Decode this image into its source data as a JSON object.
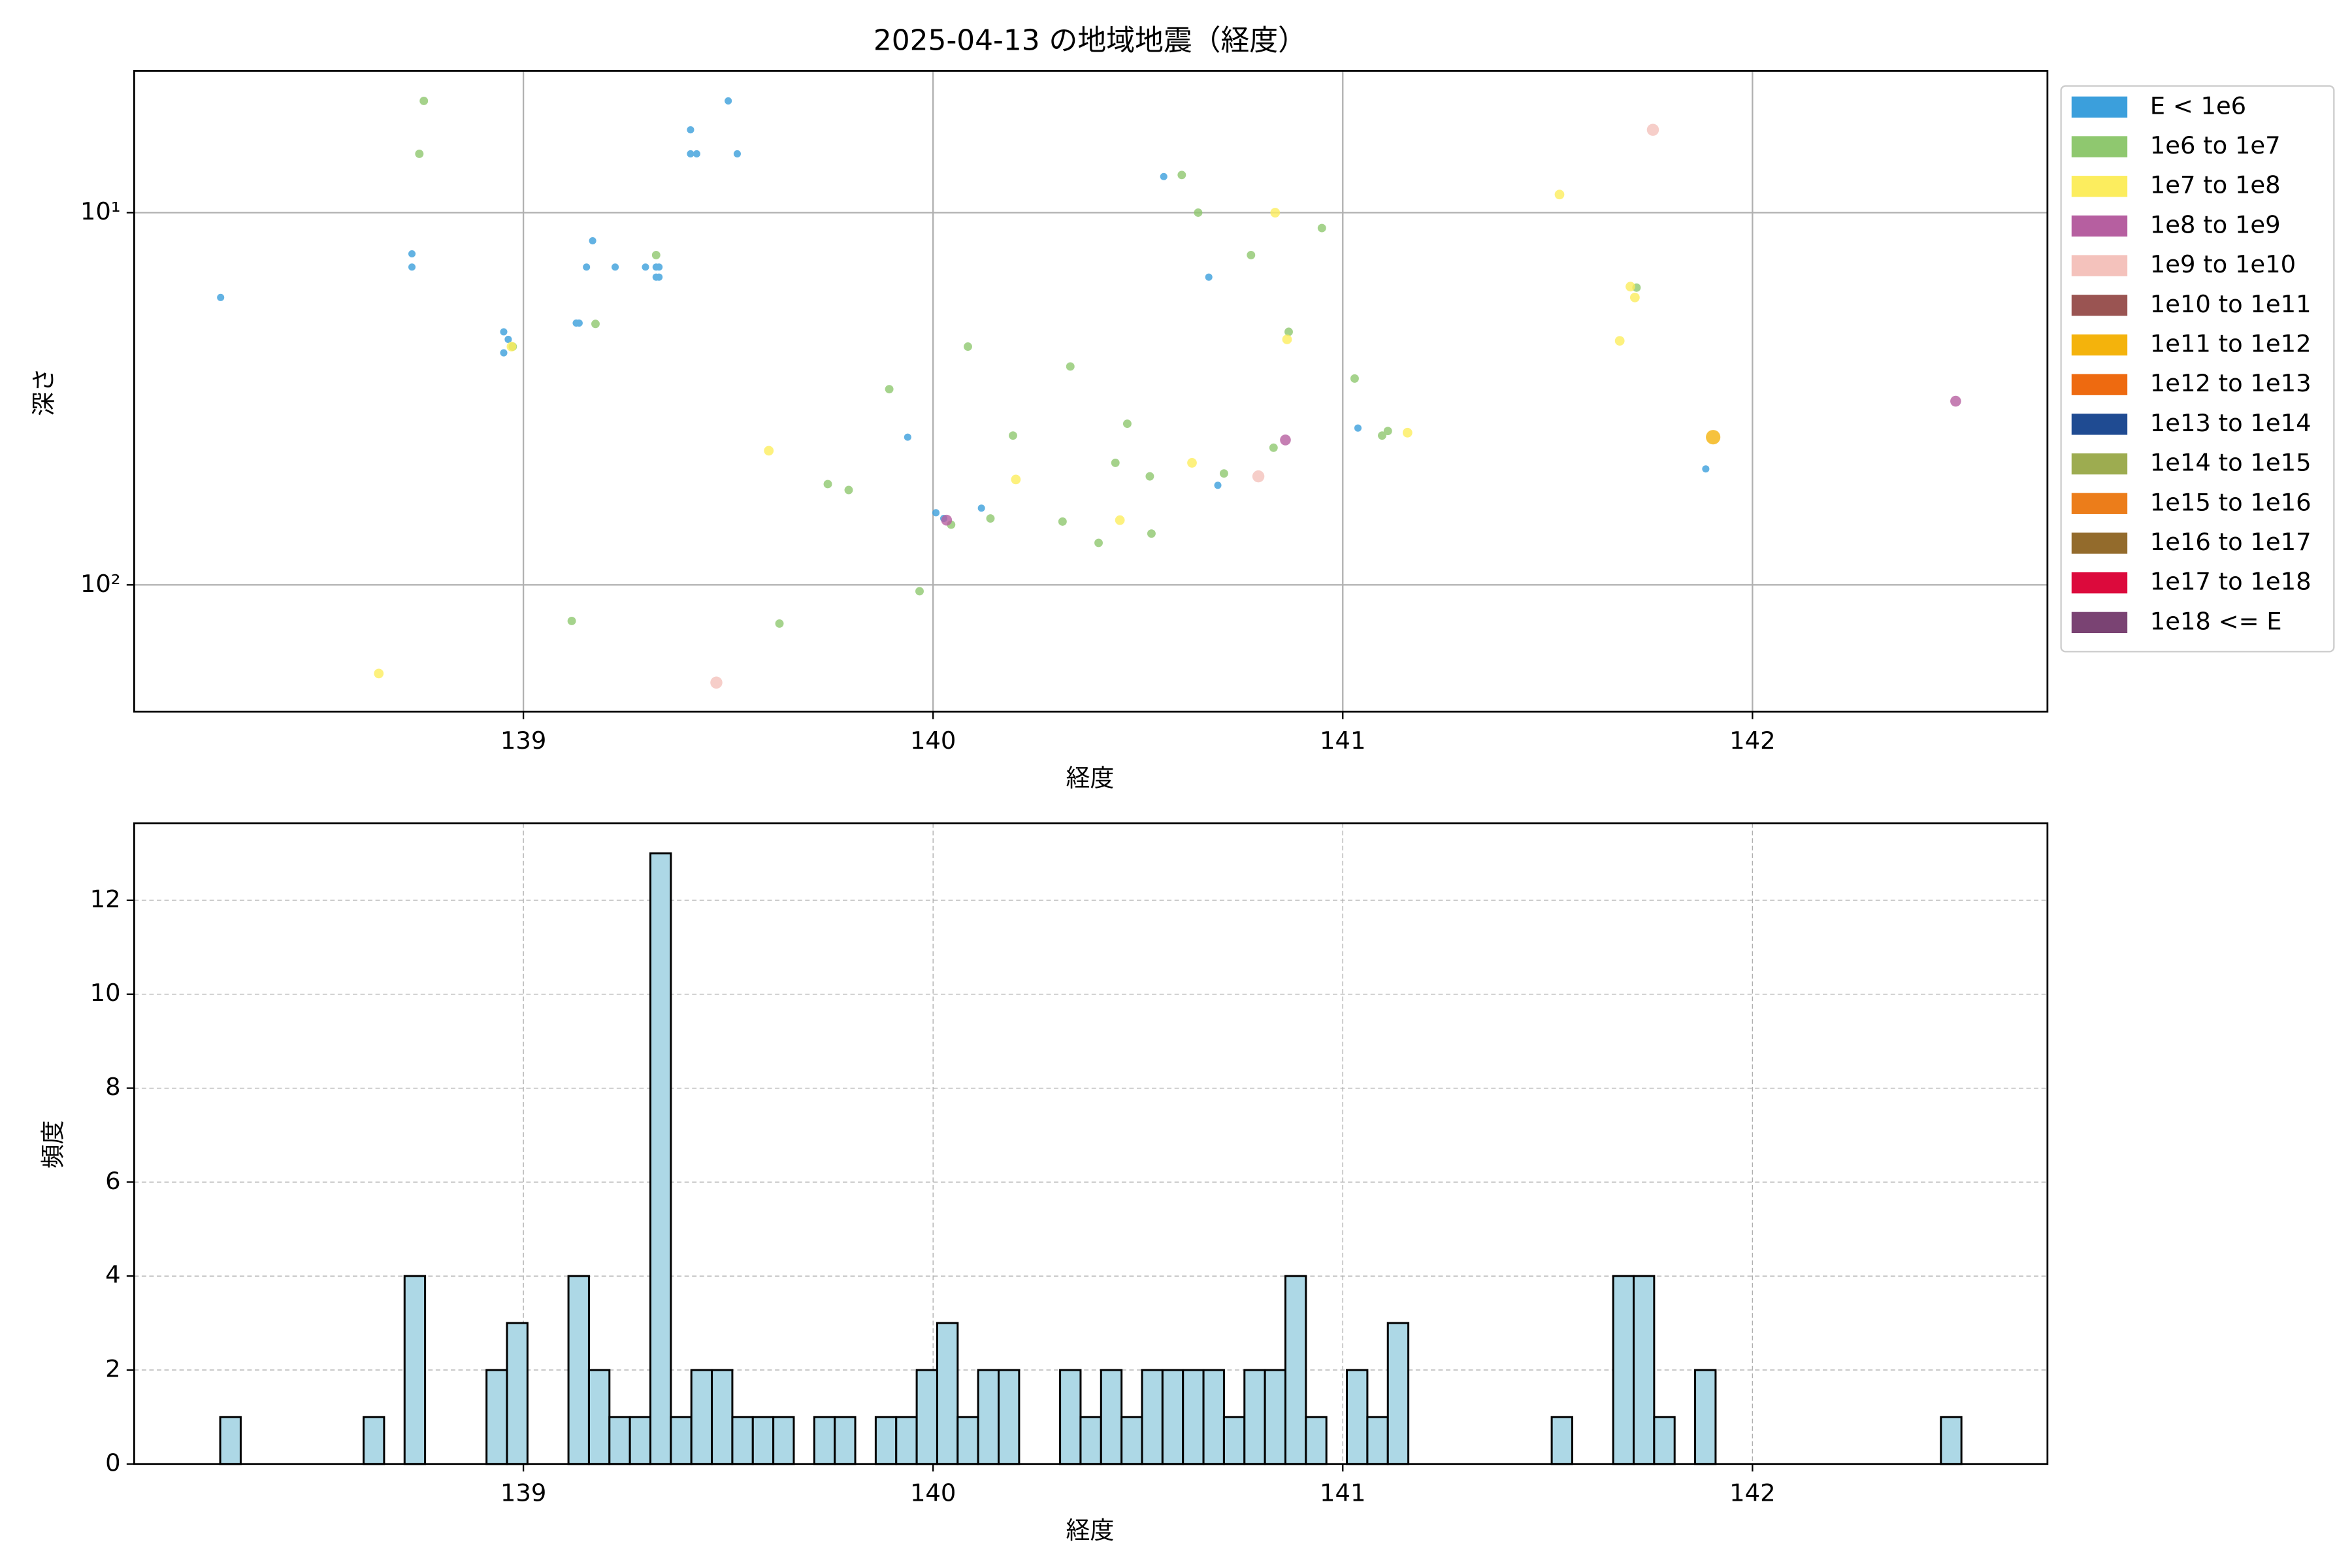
{
  "chart_data": [
    {
      "type": "scatter",
      "title": "2025-04-13 の地域地震（経度）",
      "xlabel": "経度",
      "ylabel": "深さ",
      "xlim": [
        138.05,
        142.72
      ],
      "ylim": [
        4.16,
        219
      ],
      "yscale": "log",
      "y_inverted": true,
      "xticks": [
        139,
        140,
        141,
        142
      ],
      "yticks": [
        {
          "value": 10,
          "label": "10¹"
        },
        {
          "value": 100,
          "label": "10²"
        }
      ],
      "grid": true,
      "legend": "outside-right",
      "series": [
        {
          "name": "E < 1e6",
          "color": "#3b9fdc",
          "x": [
            138.261,
            138.728,
            138.728,
            138.952,
            138.963,
            138.952,
            139.129,
            139.136,
            139.169,
            139.154,
            139.224,
            139.298,
            139.324,
            139.331,
            139.324,
            139.331,
            139.408,
            139.408,
            139.423,
            139.5,
            139.522,
            139.938,
            140.007,
            140.026,
            140.118,
            140.563,
            140.673,
            140.695,
            141.037,
            141.886
          ],
          "values": [
            16.9,
            12.9,
            14.0,
            20.9,
            21.9,
            23.8,
            19.8,
            19.8,
            11.9,
            14.0,
            14.0,
            14.0,
            14.0,
            14.0,
            14.9,
            14.9,
            5.99,
            6.95,
            6.95,
            5.01,
            6.95,
            40.1,
            64.0,
            66.3,
            62.2,
            8.0,
            14.9,
            54.0,
            37.9,
            48.8
          ]
        },
        {
          "name": "1e6 to 1e7",
          "color": "#8fc86f",
          "x": [
            138.757,
            138.746,
            138.974,
            139.176,
            139.118,
            139.324,
            139.893,
            139.743,
            139.794,
            139.967,
            139.625,
            140.044,
            140.085,
            140.14,
            140.195,
            140.316,
            140.335,
            140.404,
            140.445,
            140.474,
            140.529,
            140.533,
            140.607,
            140.647,
            140.71,
            140.776,
            140.831,
            140.868,
            140.949,
            141.029,
            141.096,
            141.11,
            141.717
          ],
          "values": [
            5.01,
            6.95,
            22.9,
            19.9,
            125,
            13.0,
            29.8,
            53.6,
            55.6,
            104,
            127,
            68.9,
            22.9,
            66.3,
            39.7,
            67.6,
            25.9,
            77.1,
            47.0,
            36.9,
            51.1,
            72.8,
            7.92,
            10.0,
            50.2,
            13.0,
            42.8,
            20.9,
            11.0,
            27.9,
            39.7,
            38.6,
            15.9
          ]
        },
        {
          "name": "1e7 to 1e8",
          "color": "#fced5e",
          "x": [
            138.647,
            138.971,
            139.599,
            140.202,
            140.456,
            140.632,
            140.835,
            140.864,
            141.158,
            141.529,
            141.676,
            141.702,
            141.713
          ],
          "values": [
            173,
            22.9,
            43.6,
            52.1,
            67.0,
            47.0,
            10.0,
            21.9,
            39.0,
            8.94,
            22.1,
            15.8,
            16.9
          ]
        },
        {
          "name": "1e8 to 1e9",
          "color": "#b65fa0",
          "x": [
            140.033,
            140.86,
            142.496
          ],
          "values": [
            67,
            40.8,
            32.1
          ]
        },
        {
          "name": "1e9 to 1e10",
          "color": "#f4c2bc",
          "x": [
            139.471,
            140.794,
            141.757
          ],
          "values": [
            183,
            51.1,
            5.99
          ]
        },
        {
          "name": "1e10 to 1e11",
          "color": "#9a5452",
          "x": [],
          "values": []
        },
        {
          "name": "1e11 to 1e12",
          "color": "#f4b30c",
          "x": [
            141.904
          ],
          "values": [
            40.1
          ]
        },
        {
          "name": "1e12 to 1e13",
          "color": "#ee6a10",
          "x": [],
          "values": []
        },
        {
          "name": "1e13 to 1e14",
          "color": "#1f4b92",
          "x": [],
          "values": []
        },
        {
          "name": "1e14 to 1e15",
          "color": "#9dac50",
          "x": [],
          "values": []
        },
        {
          "name": "1e15 to 1e16",
          "color": "#ec7d1a",
          "x": [],
          "values": []
        },
        {
          "name": "1e16 to 1e17",
          "color": "#936b2c",
          "x": [],
          "values": []
        },
        {
          "name": "1e17 to 1e18",
          "color": "#dc0a3c",
          "x": [],
          "values": []
        },
        {
          "name": "1e18 <= E",
          "color": "#7a4373",
          "x": [],
          "values": []
        }
      ]
    },
    {
      "type": "histogram",
      "xlabel": "経度",
      "ylabel": "頻度",
      "color": "#add8e6",
      "edgecolor": "#000000",
      "xlim": [
        138.05,
        142.72
      ],
      "ylim": [
        0,
        13.64
      ],
      "xticks": [
        139,
        140,
        141,
        142
      ],
      "yticks": [
        0,
        2,
        4,
        6,
        8,
        10,
        12
      ],
      "grid": true,
      "grid_style": "dashed",
      "bins": [
        138.26,
        138.31,
        138.36,
        138.41,
        138.46,
        138.51,
        138.56,
        138.61,
        138.66,
        138.71,
        138.76,
        138.81,
        138.86,
        138.91,
        138.96,
        139.01,
        139.06,
        139.11,
        139.16,
        139.21,
        139.26,
        139.31,
        139.36,
        139.41,
        139.46,
        139.51,
        139.56,
        139.61,
        139.66,
        139.71,
        139.76,
        139.81,
        139.86,
        139.91,
        139.96,
        140.01,
        140.06,
        140.11,
        140.16,
        140.21,
        140.26,
        140.31,
        140.36,
        140.41,
        140.46,
        140.51,
        140.56,
        140.61,
        140.66,
        140.71,
        140.76,
        140.81,
        140.86,
        140.91,
        140.96,
        141.01,
        141.06,
        141.11,
        141.16,
        141.21,
        141.26,
        141.31,
        141.36,
        141.41,
        141.46,
        141.51,
        141.56,
        141.61,
        141.66,
        141.71,
        141.76,
        141.81,
        141.86,
        141.91,
        141.96,
        142.01,
        142.06,
        142.11,
        142.16,
        142.21,
        142.26,
        142.31,
        142.36,
        142.41,
        142.46,
        142.51
      ],
      "values": [
        1,
        0,
        0,
        0,
        0,
        0,
        0,
        1,
        0,
        4,
        0,
        0,
        0,
        2,
        3,
        0,
        0,
        4,
        2,
        1,
        1,
        13,
        1,
        2,
        2,
        1,
        1,
        1,
        0,
        1,
        1,
        0,
        1,
        1,
        2,
        3,
        1,
        2,
        2,
        0,
        0,
        2,
        1,
        2,
        1,
        2,
        2,
        2,
        2,
        1,
        2,
        2,
        4,
        1,
        0,
        2,
        1,
        3,
        0,
        0,
        0,
        0,
        0,
        0,
        0,
        1,
        0,
        0,
        4,
        4,
        1,
        0,
        2,
        0,
        0,
        0,
        0,
        0,
        0,
        0,
        0,
        0,
        0,
        0,
        1
      ]
    }
  ]
}
